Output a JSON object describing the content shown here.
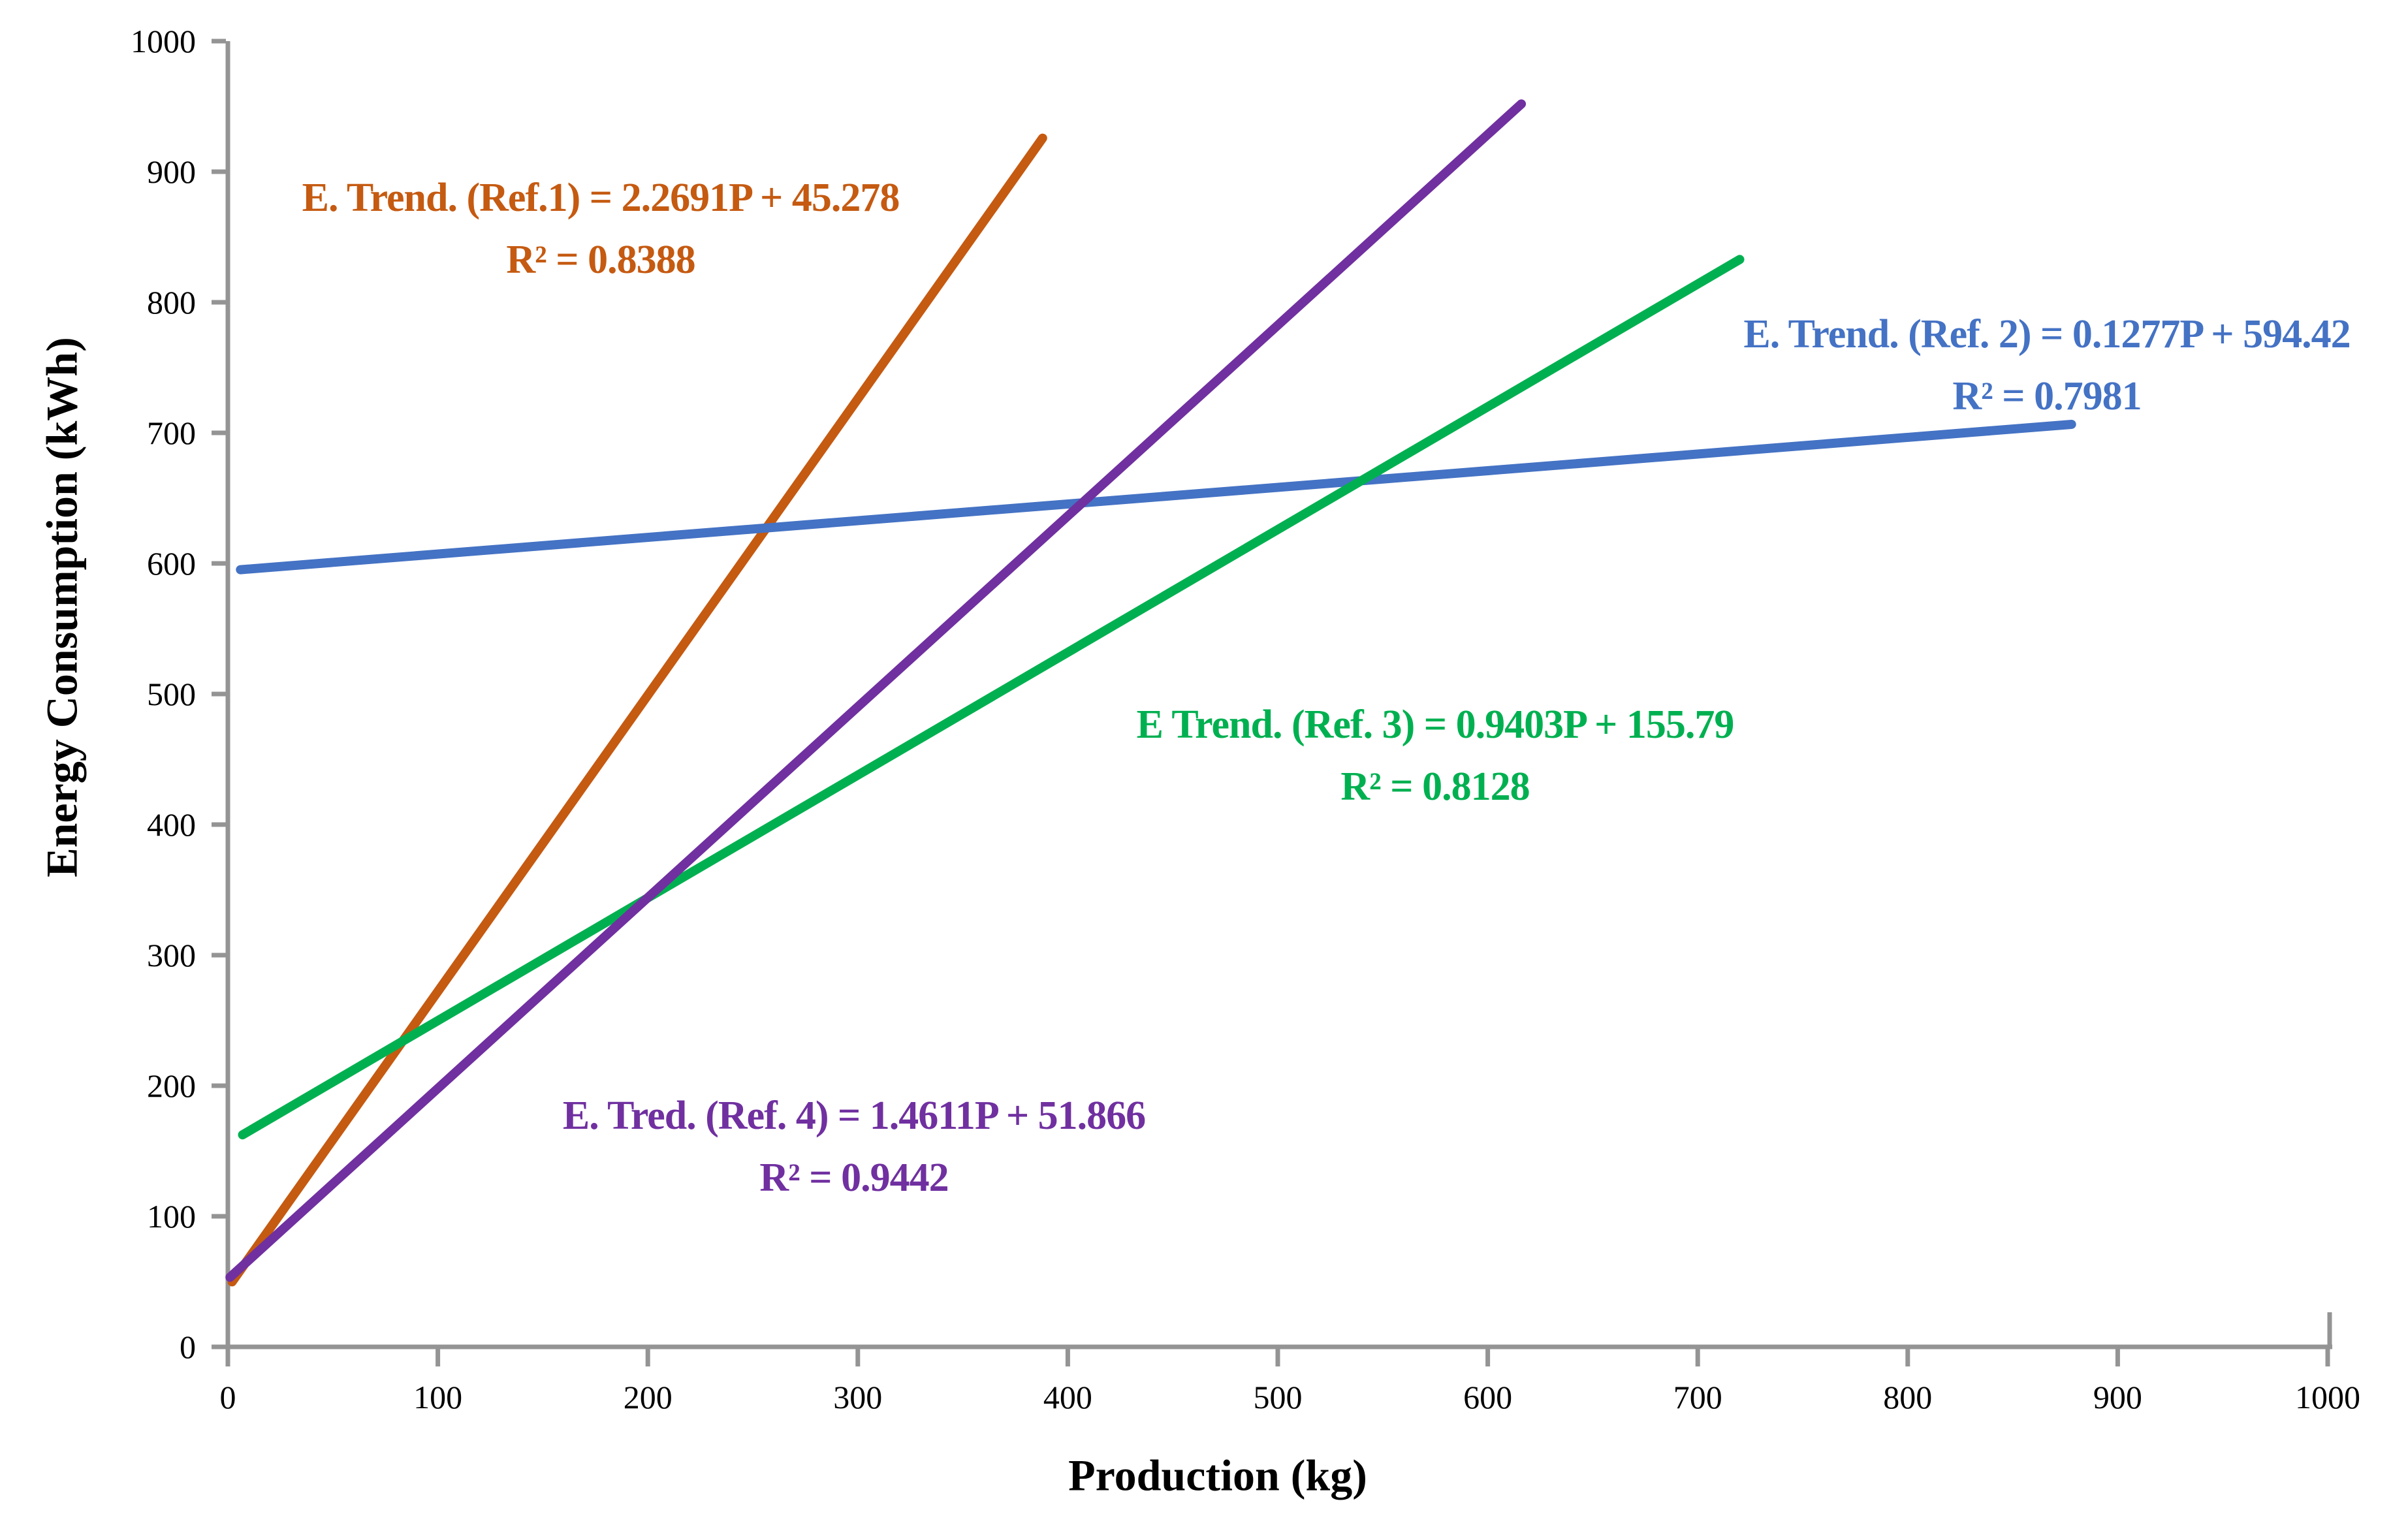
{
  "chart_data": {
    "type": "line",
    "title": "",
    "xlabel": "Production (kg)",
    "ylabel": "Energy Consumption (kWh)",
    "xlim": [
      0,
      1000
    ],
    "ylim": [
      0,
      1000
    ],
    "x_ticks": [
      0,
      100,
      200,
      300,
      400,
      500,
      600,
      700,
      800,
      900,
      1000
    ],
    "y_ticks": [
      0,
      100,
      200,
      300,
      400,
      500,
      600,
      700,
      800,
      900,
      1000
    ],
    "grid": false,
    "legend_position": "none",
    "axis_color": "#949494",
    "label_color": "#000000",
    "series": [
      {
        "name": "Ref. 1",
        "equation_label": "E. Trend. (Ref.1) = 2.2691P + 45.278",
        "r2_label": "R² = 0.8388",
        "slope": 2.2691,
        "intercept": 45.278,
        "r2": 0.8388,
        "color": "#C55A11",
        "x_start": 2,
        "x_end": 388,
        "y_start": 49.8,
        "y_end": 925.7
      },
      {
        "name": "Ref. 2",
        "equation_label": "E. Trend. (Ref. 2) = 0.1277P + 594.42",
        "r2_label": "R² = 0.7981",
        "slope": 0.1277,
        "intercept": 594.42,
        "r2": 0.7981,
        "color": "#4472C4",
        "x_start": 6,
        "x_end": 878,
        "y_start": 595.2,
        "y_end": 706.5
      },
      {
        "name": "Ref. 3",
        "equation_label": "E Trend. (Ref. 3) = 0.9403P + 155.79",
        "r2_label": "R² = 0.8128",
        "slope": 0.9403,
        "intercept": 155.79,
        "r2": 0.8128,
        "color": "#00B050",
        "x_start": 7,
        "x_end": 720,
        "y_start": 162.4,
        "y_end": 832.8
      },
      {
        "name": "Ref. 4",
        "equation_label": "E. Tred. (Ref. 4) = 1.4611P + 51.866",
        "r2_label": "R² = 0.9442",
        "slope": 1.4611,
        "intercept": 51.866,
        "r2": 0.9442,
        "color": "#7030A0",
        "x_start": 1,
        "x_end": 616,
        "y_start": 53.3,
        "y_end": 951.9
      }
    ]
  }
}
